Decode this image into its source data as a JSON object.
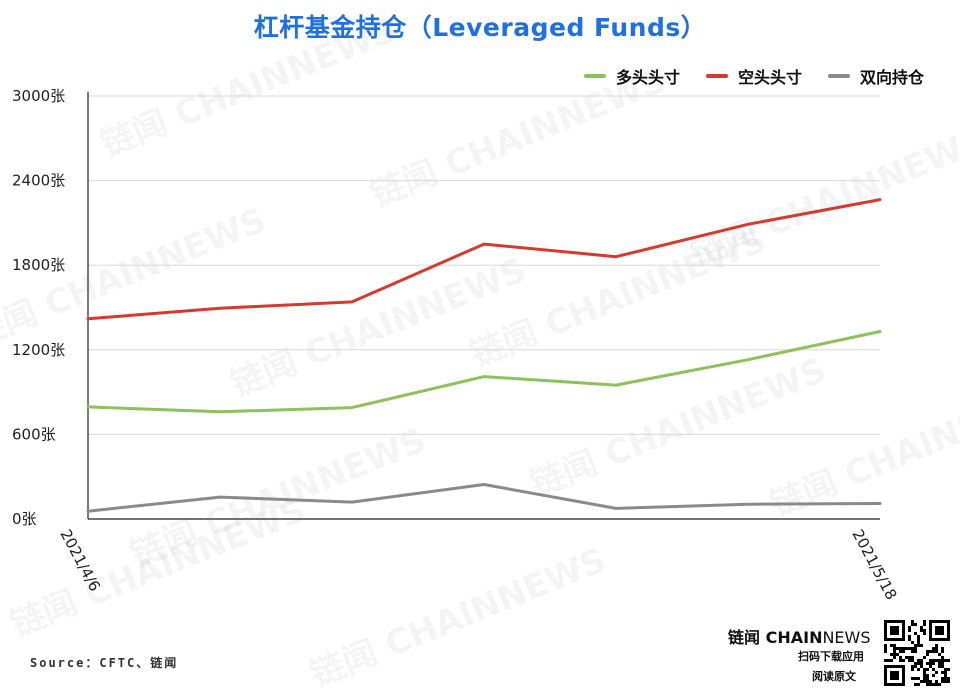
{
  "chart_data": {
    "type": "line",
    "title": "杠杆基金持仓（Leveraged Funds）",
    "x_labels_shown": [
      "2021/4/6",
      "2021/5/18"
    ],
    "x_count": 7,
    "y_ticks": [
      "0张",
      "600张",
      "1200张",
      "1800张",
      "2400张",
      "3000张"
    ],
    "ylim": [
      0,
      3000
    ],
    "legend_position": "top-right",
    "grid": true,
    "series": [
      {
        "name": "多头头寸",
        "color": "#8dc159",
        "values": [
          795,
          760,
          790,
          1010,
          950,
          1130,
          1330
        ]
      },
      {
        "name": "空头头寸",
        "color": "#d63a2f",
        "values": [
          1420,
          1495,
          1540,
          1950,
          1860,
          2090,
          2265
        ]
      },
      {
        "name": "双向持仓",
        "color": "#8a8a8a",
        "values": [
          55,
          155,
          120,
          245,
          75,
          105,
          110
        ]
      }
    ]
  },
  "footer": {
    "source": "Source：CFTC、链闻",
    "brand_cn": "链闻",
    "brand_bold": "CHAIN",
    "brand_light": "NEWS",
    "line1": "扫码下载应用",
    "line2": "阅读原文"
  },
  "watermark_text": "链闻 CHAINNEWS"
}
